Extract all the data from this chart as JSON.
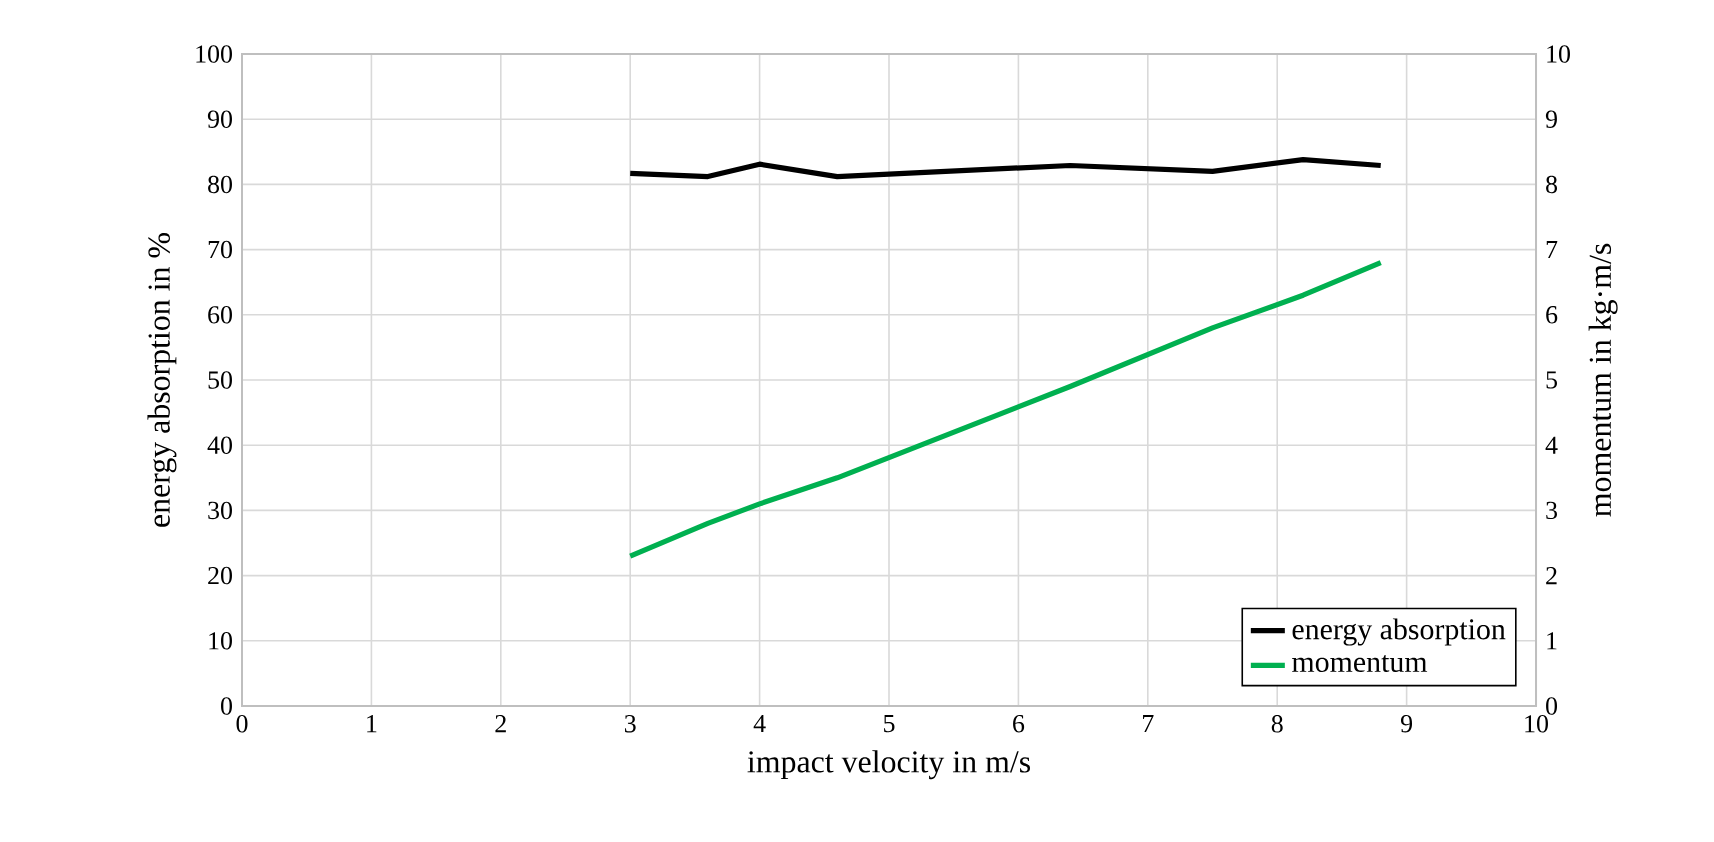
{
  "chart_data": {
    "type": "line",
    "xlabel": "impact velocity in m/s",
    "ylabel": "energy absorption in %",
    "y2label": "momentum in kg·m/s",
    "xlim": [
      0,
      10
    ],
    "xticks": [
      0,
      1,
      2,
      3,
      4,
      5,
      6,
      7,
      8,
      9,
      10
    ],
    "ylim": [
      0,
      100
    ],
    "yticks": [
      0,
      10,
      20,
      30,
      40,
      50,
      60,
      70,
      80,
      90,
      100
    ],
    "y2lim": [
      0,
      10
    ],
    "y2ticks": [
      0,
      1,
      2,
      3,
      4,
      5,
      6,
      7,
      8,
      9,
      10
    ],
    "grid": true,
    "legend": "bottom right",
    "series": [
      {
        "name": "energy absorption",
        "color": "#000000",
        "x": [
          3,
          3.6,
          4,
          4.6,
          6.4,
          7.5,
          8.2,
          8.8
        ],
        "values": [
          81.7,
          81.2,
          83.1,
          81.2,
          82.9,
          82.0,
          83.8,
          82.9
        ]
      },
      {
        "name": "momentum",
        "color": "#00b050",
        "axis": "y2",
        "x": [
          3,
          3.6,
          4,
          4.6,
          6.4,
          7.5,
          8.2,
          8.8
        ],
        "values": [
          2.3,
          2.8,
          3.1,
          3.5,
          4.9,
          5.8,
          6.3,
          6.8
        ]
      }
    ]
  }
}
